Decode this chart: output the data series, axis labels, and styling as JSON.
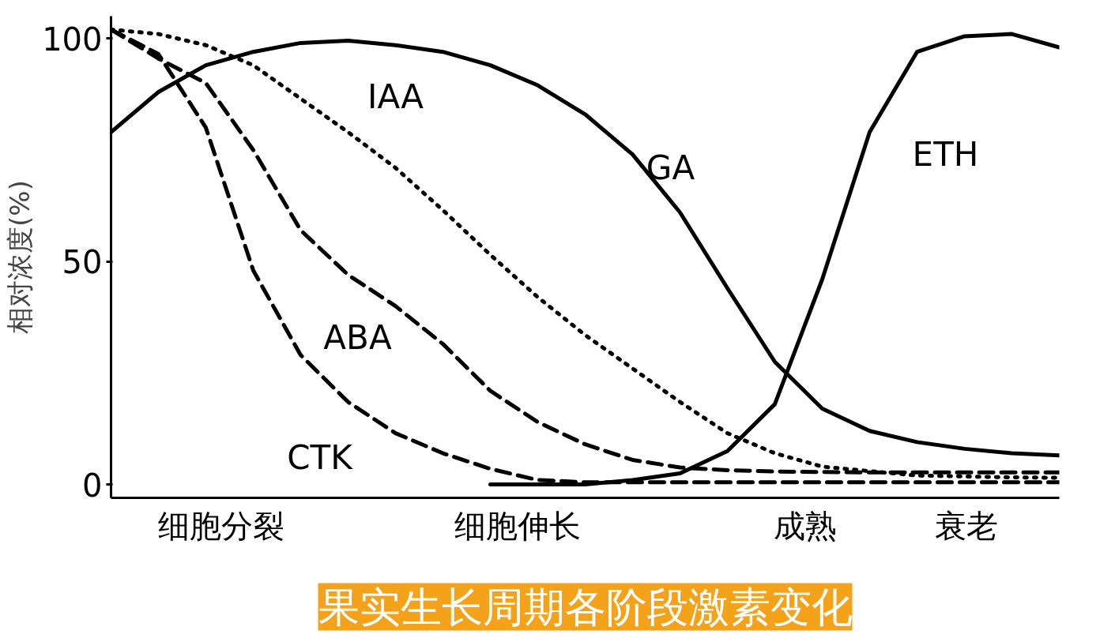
{
  "chart_data": {
    "type": "line",
    "title": "果实生长周期各阶段激素变化",
    "ylabel": "相对浓度(%)",
    "categories": [
      null,
      null,
      null,
      null,
      null,
      null,
      null,
      null,
      null,
      null,
      null,
      null,
      null,
      null,
      null,
      null,
      null,
      null,
      null,
      null,
      null
    ],
    "ylim": [
      -3,
      105
    ],
    "yticks": [
      0,
      50,
      100
    ],
    "annotations": [
      "细胞分裂",
      "细胞伸长",
      "成熟",
      "衰老"
    ],
    "series": [
      {
        "name": "IAA",
        "color": "#000000",
        "line_style": "dotted",
        "values": [
          102,
          101,
          98.5,
          94,
          86.5,
          79,
          71,
          61.5,
          51.5,
          42,
          33.5,
          26,
          18.5,
          11.5,
          7,
          4,
          3,
          2,
          1.8,
          1.6,
          1.5
        ]
      },
      {
        "name": "GA",
        "color": "#000000",
        "line_style": "solid",
        "values": [
          79,
          88,
          94,
          97,
          99,
          99.5,
          98.5,
          97,
          94,
          89.5,
          83,
          74,
          61,
          44,
          27.5,
          17,
          12,
          9.5,
          8,
          7,
          6.5
        ]
      },
      {
        "name": "ETH",
        "color": "#000000",
        "line_style": "solid",
        "values": [
          null,
          null,
          null,
          null,
          null,
          null,
          null,
          null,
          0,
          0,
          0,
          1,
          2.5,
          7.5,
          18,
          46,
          79,
          97,
          100.5,
          101,
          98
        ]
      },
      {
        "name": "ABA",
        "color": "#000000",
        "line_style": "dashed",
        "values": [
          102,
          95.5,
          90,
          75,
          57,
          47,
          40,
          31.5,
          21,
          14,
          9,
          5.5,
          3.8,
          3.2,
          2.9,
          2.8,
          2.7,
          2.7,
          2.7,
          2.7,
          2.7
        ]
      },
      {
        "name": "CTK",
        "color": "#000000",
        "line_style": "dashed",
        "values": [
          102,
          96.5,
          80,
          48,
          29,
          18.5,
          11.5,
          7,
          3.5,
          1,
          0.5,
          0.5,
          0.5,
          0.5,
          0.5,
          0.5,
          0.5,
          0.5,
          0.5,
          0.5,
          0.5
        ]
      }
    ]
  }
}
